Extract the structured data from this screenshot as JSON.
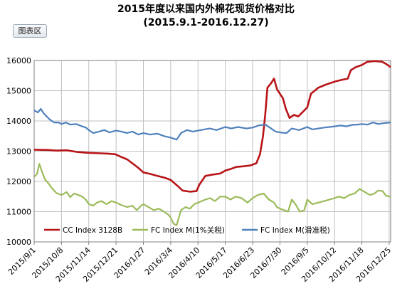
{
  "toolbar": {
    "area_button_label": "图表区"
  },
  "colors": {
    "cc": "#b81418",
    "fcm1": "#9bbb59",
    "fcm_slide": "#4f81bd",
    "grid": "#bfbfbf",
    "axis": "#7f7f7f"
  },
  "chart_data": {
    "type": "line",
    "title": "2015年度以来国内外棉花现货价格对比",
    "subtitle": "(2015.9.1-2016.12.27)",
    "xlabel": "",
    "ylabel": "",
    "ylim": [
      10000,
      16000
    ],
    "yticks": [
      10000,
      11000,
      12000,
      13000,
      14000,
      15000,
      16000
    ],
    "x_range": [
      "2015/9/1",
      "2016/12/27"
    ],
    "x_tick_labels": [
      "2015/9/1",
      "2015/10/8",
      "2015/11/14",
      "2015/12/21",
      "2016/1/27",
      "2016/3/4",
      "2016/4/10",
      "2016/5/17",
      "2016/6/23",
      "2016/7/30",
      "2016/9/5",
      "2016/10/12",
      "2016/11/18",
      "2016/12/25"
    ],
    "grid": "both",
    "legend_position": "bottom",
    "series": [
      {
        "name": "CC Index 3128B",
        "color": "#b81418",
        "points": [
          [
            "2015/9/1",
            13050
          ],
          [
            "2015/9/20",
            13040
          ],
          [
            "2015/10/1",
            13020
          ],
          [
            "2015/10/15",
            13030
          ],
          [
            "2015/10/28",
            12980
          ],
          [
            "2015/11/10",
            12950
          ],
          [
            "2015/11/20",
            12940
          ],
          [
            "2015/12/1",
            12930
          ],
          [
            "2015/12/10",
            12920
          ],
          [
            "2015/12/20",
            12900
          ],
          [
            "2015/12/27",
            12820
          ],
          [
            "2016/1/5",
            12730
          ],
          [
            "2016/1/12",
            12600
          ],
          [
            "2016/1/20",
            12450
          ],
          [
            "2016/1/27",
            12300
          ],
          [
            "2016/2/5",
            12250
          ],
          [
            "2016/2/15",
            12180
          ],
          [
            "2016/2/25",
            12120
          ],
          [
            "2016/3/4",
            12050
          ],
          [
            "2016/3/12",
            11880
          ],
          [
            "2016/3/20",
            11700
          ],
          [
            "2016/3/30",
            11660
          ],
          [
            "2016/4/8",
            11680
          ],
          [
            "2016/4/12",
            11900
          ],
          [
            "2016/4/20",
            12180
          ],
          [
            "2016/4/28",
            12220
          ],
          [
            "2016/5/10",
            12260
          ],
          [
            "2016/5/17",
            12360
          ],
          [
            "2016/5/25",
            12420
          ],
          [
            "2016/6/1",
            12480
          ],
          [
            "2016/6/10",
            12500
          ],
          [
            "2016/6/20",
            12530
          ],
          [
            "2016/6/28",
            12600
          ],
          [
            "2016/7/3",
            12900
          ],
          [
            "2016/7/7",
            13500
          ],
          [
            "2016/7/10",
            14200
          ],
          [
            "2016/7/13",
            15100
          ],
          [
            "2016/7/18",
            15250
          ],
          [
            "2016/7/22",
            15400
          ],
          [
            "2016/7/26",
            15050
          ],
          [
            "2016/7/30",
            14900
          ],
          [
            "2016/8/3",
            14750
          ],
          [
            "2016/8/7",
            14400
          ],
          [
            "2016/8/12",
            14100
          ],
          [
            "2016/8/18",
            14200
          ],
          [
            "2016/8/24",
            14150
          ],
          [
            "2016/8/30",
            14300
          ],
          [
            "2016/9/5",
            14450
          ],
          [
            "2016/9/10",
            14900
          ],
          [
            "2016/9/15",
            15000
          ],
          [
            "2016/9/20",
            15100
          ],
          [
            "2016/9/30",
            15200
          ],
          [
            "2016/10/12",
            15300
          ],
          [
            "2016/10/20",
            15350
          ],
          [
            "2016/10/30",
            15400
          ],
          [
            "2016/11/3",
            15680
          ],
          [
            "2016/11/10",
            15780
          ],
          [
            "2016/11/18",
            15850
          ],
          [
            "2016/11/25",
            15950
          ],
          [
            "2016/12/5",
            15980
          ],
          [
            "2016/12/15",
            15960
          ],
          [
            "2016/12/20",
            15900
          ],
          [
            "2016/12/27",
            15780
          ]
        ]
      },
      {
        "name": "FC Index M(1%关税)",
        "color": "#9bbb59",
        "points": [
          [
            "2015/9/1",
            12150
          ],
          [
            "2015/9/5",
            12250
          ],
          [
            "2015/9/8",
            12580
          ],
          [
            "2015/9/12",
            12300
          ],
          [
            "2015/9/16",
            12050
          ],
          [
            "2015/9/20",
            11950
          ],
          [
            "2015/9/25",
            11780
          ],
          [
            "2015/10/1",
            11620
          ],
          [
            "2015/10/8",
            11550
          ],
          [
            "2015/10/15",
            11650
          ],
          [
            "2015/10/20",
            11480
          ],
          [
            "2015/10/25",
            11600
          ],
          [
            "2015/10/30",
            11560
          ],
          [
            "2015/11/5",
            11500
          ],
          [
            "2015/11/10",
            11400
          ],
          [
            "2015/11/14",
            11250
          ],
          [
            "2015/11/20",
            11200
          ],
          [
            "2015/11/25",
            11300
          ],
          [
            "2015/12/1",
            11350
          ],
          [
            "2015/12/8",
            11250
          ],
          [
            "2015/12/15",
            11350
          ],
          [
            "2015/12/21",
            11300
          ],
          [
            "2015/12/28",
            11220
          ],
          [
            "2016/1/5",
            11150
          ],
          [
            "2016/1/12",
            11200
          ],
          [
            "2016/1/18",
            11050
          ],
          [
            "2016/1/24",
            11200
          ],
          [
            "2016/1/27",
            11250
          ],
          [
            "2016/2/3",
            11150
          ],
          [
            "2016/2/10",
            11050
          ],
          [
            "2016/2/17",
            11100
          ],
          [
            "2016/2/24",
            11000
          ],
          [
            "2016/3/1",
            10900
          ],
          [
            "2016/3/4",
            10800
          ],
          [
            "2016/3/8",
            10600
          ],
          [
            "2016/3/12",
            10550
          ],
          [
            "2016/3/18",
            11050
          ],
          [
            "2016/3/24",
            11150
          ],
          [
            "2016/3/30",
            11100
          ],
          [
            "2016/4/5",
            11250
          ],
          [
            "2016/4/10",
            11300
          ],
          [
            "2016/4/15",
            11350
          ],
          [
            "2016/4/20",
            11400
          ],
          [
            "2016/4/26",
            11450
          ],
          [
            "2016/5/3",
            11350
          ],
          [
            "2016/5/10",
            11500
          ],
          [
            "2016/5/17",
            11500
          ],
          [
            "2016/5/24",
            11400
          ],
          [
            "2016/5/31",
            11500
          ],
          [
            "2016/6/8",
            11450
          ],
          [
            "2016/6/16",
            11300
          ],
          [
            "2016/6/23",
            11450
          ],
          [
            "2016/6/30",
            11550
          ],
          [
            "2016/7/8",
            11600
          ],
          [
            "2016/7/15",
            11400
          ],
          [
            "2016/7/22",
            11300
          ],
          [
            "2016/7/26",
            11150
          ],
          [
            "2016/7/30",
            11100
          ],
          [
            "2016/8/5",
            11050
          ],
          [
            "2016/8/10",
            11000
          ],
          [
            "2016/8/15",
            11400
          ],
          [
            "2016/8/20",
            11250
          ],
          [
            "2016/8/26",
            11000
          ],
          [
            "2016/9/1",
            11050
          ],
          [
            "2016/9/5",
            11400
          ],
          [
            "2016/9/12",
            11250
          ],
          [
            "2016/9/20",
            11300
          ],
          [
            "2016/9/28",
            11350
          ],
          [
            "2016/10/5",
            11400
          ],
          [
            "2016/10/12",
            11450
          ],
          [
            "2016/10/18",
            11500
          ],
          [
            "2016/10/25",
            11450
          ],
          [
            "2016/11/1",
            11550
          ],
          [
            "2016/11/8",
            11600
          ],
          [
            "2016/11/15",
            11750
          ],
          [
            "2016/11/22",
            11650
          ],
          [
            "2016/11/29",
            11550
          ],
          [
            "2016/12/5",
            11600
          ],
          [
            "2016/12/10",
            11700
          ],
          [
            "2016/12/16",
            11680
          ],
          [
            "2016/12/21",
            11520
          ],
          [
            "2016/12/27",
            11500
          ]
        ]
      },
      {
        "name": "FC Index M(滑准税)",
        "color": "#4f81bd",
        "points": [
          [
            "2015/9/1",
            14350
          ],
          [
            "2015/9/6",
            14280
          ],
          [
            "2015/9/10",
            14400
          ],
          [
            "2015/9/14",
            14250
          ],
          [
            "2015/9/18",
            14150
          ],
          [
            "2015/9/22",
            14050
          ],
          [
            "2015/9/28",
            13950
          ],
          [
            "2015/10/4",
            13950
          ],
          [
            "2015/10/8",
            13900
          ],
          [
            "2015/10/14",
            13950
          ],
          [
            "2015/10/20",
            13880
          ],
          [
            "2015/10/28",
            13900
          ],
          [
            "2015/11/5",
            13820
          ],
          [
            "2015/11/10",
            13780
          ],
          [
            "2015/11/14",
            13700
          ],
          [
            "2015/11/20",
            13600
          ],
          [
            "2015/11/28",
            13650
          ],
          [
            "2015/12/5",
            13700
          ],
          [
            "2015/12/12",
            13620
          ],
          [
            "2015/12/21",
            13680
          ],
          [
            "2015/12/28",
            13650
          ],
          [
            "2016/1/5",
            13600
          ],
          [
            "2016/1/12",
            13650
          ],
          [
            "2016/1/20",
            13550
          ],
          [
            "2016/1/27",
            13600
          ],
          [
            "2016/2/5",
            13550
          ],
          [
            "2016/2/15",
            13580
          ],
          [
            "2016/2/24",
            13500
          ],
          [
            "2016/3/4",
            13450
          ],
          [
            "2016/3/12",
            13380
          ],
          [
            "2016/3/18",
            13600
          ],
          [
            "2016/3/26",
            13700
          ],
          [
            "2016/4/3",
            13650
          ],
          [
            "2016/4/10",
            13680
          ],
          [
            "2016/4/18",
            13720
          ],
          [
            "2016/4/26",
            13750
          ],
          [
            "2016/5/5",
            13700
          ],
          [
            "2016/5/17",
            13800
          ],
          [
            "2016/5/25",
            13750
          ],
          [
            "2016/6/3",
            13800
          ],
          [
            "2016/6/15",
            13750
          ],
          [
            "2016/6/23",
            13780
          ],
          [
            "2016/7/1",
            13850
          ],
          [
            "2016/7/10",
            13880
          ],
          [
            "2016/7/18",
            13750
          ],
          [
            "2016/7/24",
            13650
          ],
          [
            "2016/7/30",
            13620
          ],
          [
            "2016/8/8",
            13600
          ],
          [
            "2016/8/15",
            13750
          ],
          [
            "2016/8/25",
            13700
          ],
          [
            "2016/9/5",
            13800
          ],
          [
            "2016/9/12",
            13720
          ],
          [
            "2016/9/20",
            13750
          ],
          [
            "2016/9/28",
            13780
          ],
          [
            "2016/10/5",
            13800
          ],
          [
            "2016/10/12",
            13820
          ],
          [
            "2016/10/20",
            13850
          ],
          [
            "2016/10/28",
            13820
          ],
          [
            "2016/11/5",
            13870
          ],
          [
            "2016/11/12",
            13880
          ],
          [
            "2016/11/18",
            13900
          ],
          [
            "2016/11/26",
            13880
          ],
          [
            "2016/12/3",
            13950
          ],
          [
            "2016/12/10",
            13900
          ],
          [
            "2016/12/18",
            13930
          ],
          [
            "2016/12/27",
            13950
          ]
        ]
      }
    ]
  }
}
